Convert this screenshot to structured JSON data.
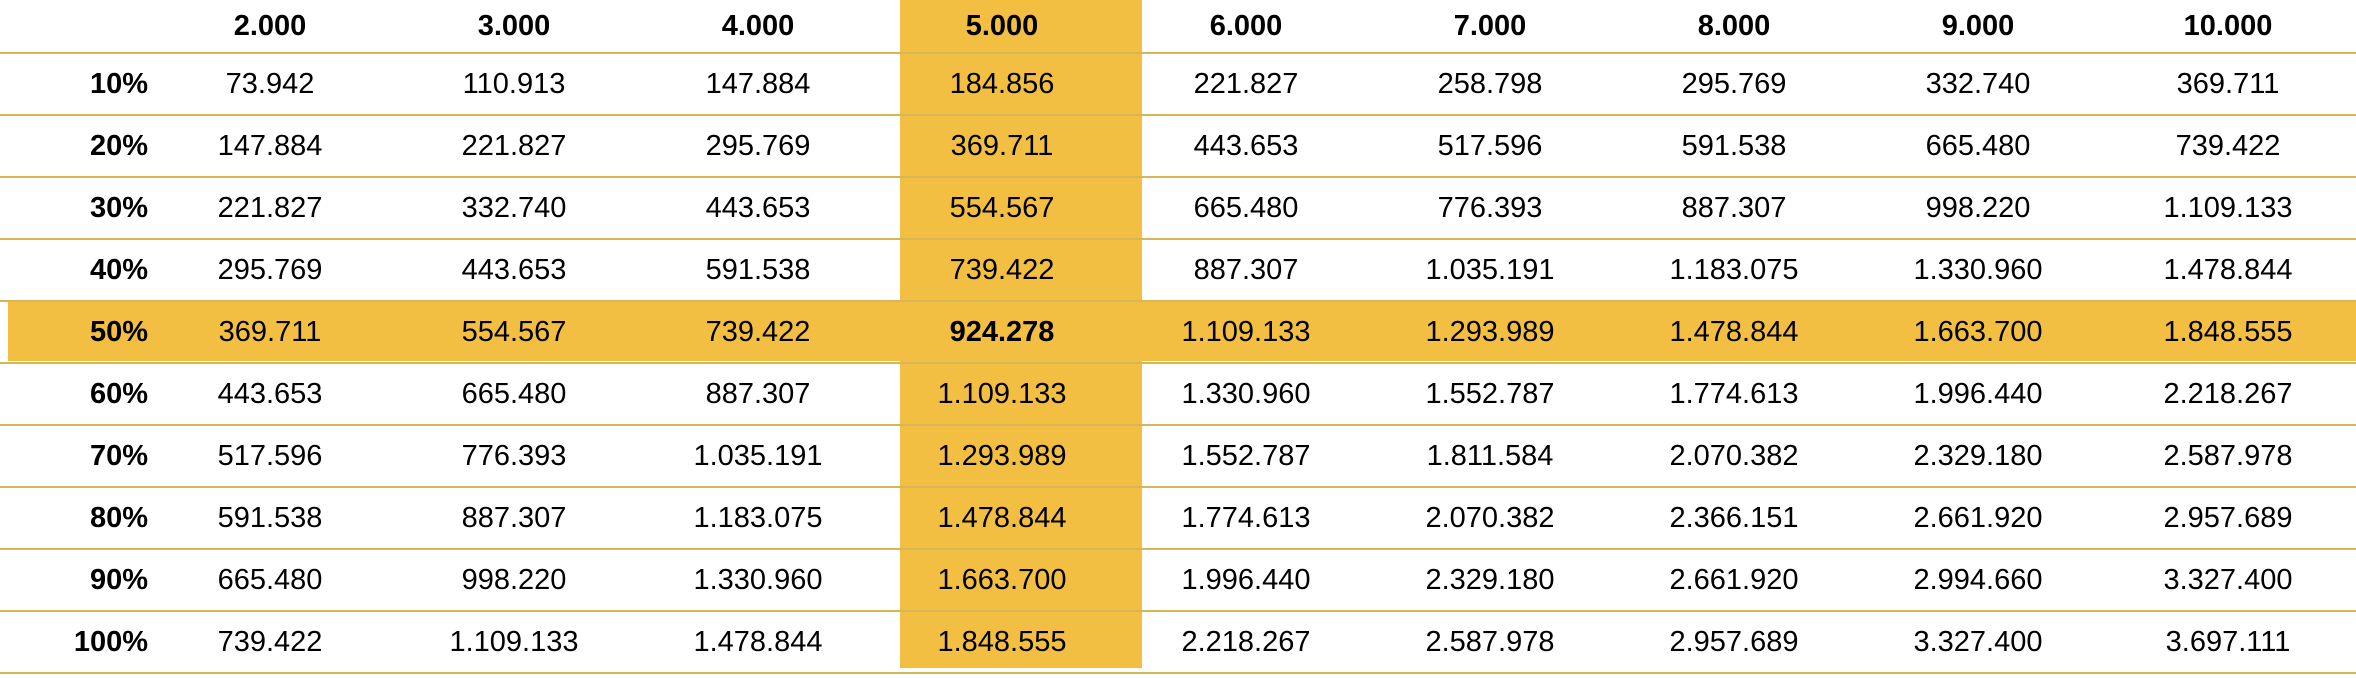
{
  "table": {
    "corner_label": "",
    "columns": [
      "2.000",
      "3.000",
      "4.000",
      "5.000",
      "6.000",
      "7.000",
      "8.000",
      "9.000",
      "10.000"
    ],
    "highlight_color": "#f2bf43",
    "highlight_column": "5.000",
    "highlight_row": "50%",
    "rows": [
      {
        "label": "10%",
        "values": [
          "73.942",
          "110.913",
          "147.884",
          "184.856",
          "221.827",
          "258.798",
          "295.769",
          "332.740",
          "369.711"
        ]
      },
      {
        "label": "20%",
        "values": [
          "147.884",
          "221.827",
          "295.769",
          "369.711",
          "443.653",
          "517.596",
          "591.538",
          "665.480",
          "739.422"
        ]
      },
      {
        "label": "30%",
        "values": [
          "221.827",
          "332.740",
          "443.653",
          "554.567",
          "665.480",
          "776.393",
          "887.307",
          "998.220",
          "1.109.133"
        ]
      },
      {
        "label": "40%",
        "values": [
          "295.769",
          "443.653",
          "591.538",
          "739.422",
          "887.307",
          "1.035.191",
          "1.183.075",
          "1.330.960",
          "1.478.844"
        ]
      },
      {
        "label": "50%",
        "values": [
          "369.711",
          "554.567",
          "739.422",
          "924.278",
          "1.109.133",
          "1.293.989",
          "1.478.844",
          "1.663.700",
          "1.848.555"
        ]
      },
      {
        "label": "60%",
        "values": [
          "443.653",
          "665.480",
          "887.307",
          "1.109.133",
          "1.330.960",
          "1.552.787",
          "1.774.613",
          "1.996.440",
          "2.218.267"
        ]
      },
      {
        "label": "70%",
        "values": [
          "517.596",
          "776.393",
          "1.035.191",
          "1.293.989",
          "1.552.787",
          "1.811.584",
          "2.070.382",
          "2.329.180",
          "2.587.978"
        ]
      },
      {
        "label": "80%",
        "values": [
          "591.538",
          "887.307",
          "1.183.075",
          "1.478.844",
          "1.774.613",
          "2.070.382",
          "2.366.151",
          "2.661.920",
          "2.957.689"
        ]
      },
      {
        "label": "90%",
        "values": [
          "665.480",
          "998.220",
          "1.330.960",
          "1.663.700",
          "1.996.440",
          "2.329.180",
          "2.661.920",
          "2.994.660",
          "3.327.400"
        ]
      },
      {
        "label": "100%",
        "values": [
          "739.422",
          "1.109.133",
          "1.478.844",
          "1.848.555",
          "2.218.267",
          "2.587.978",
          "2.957.689",
          "3.327.400",
          "3.697.111"
        ]
      }
    ]
  }
}
